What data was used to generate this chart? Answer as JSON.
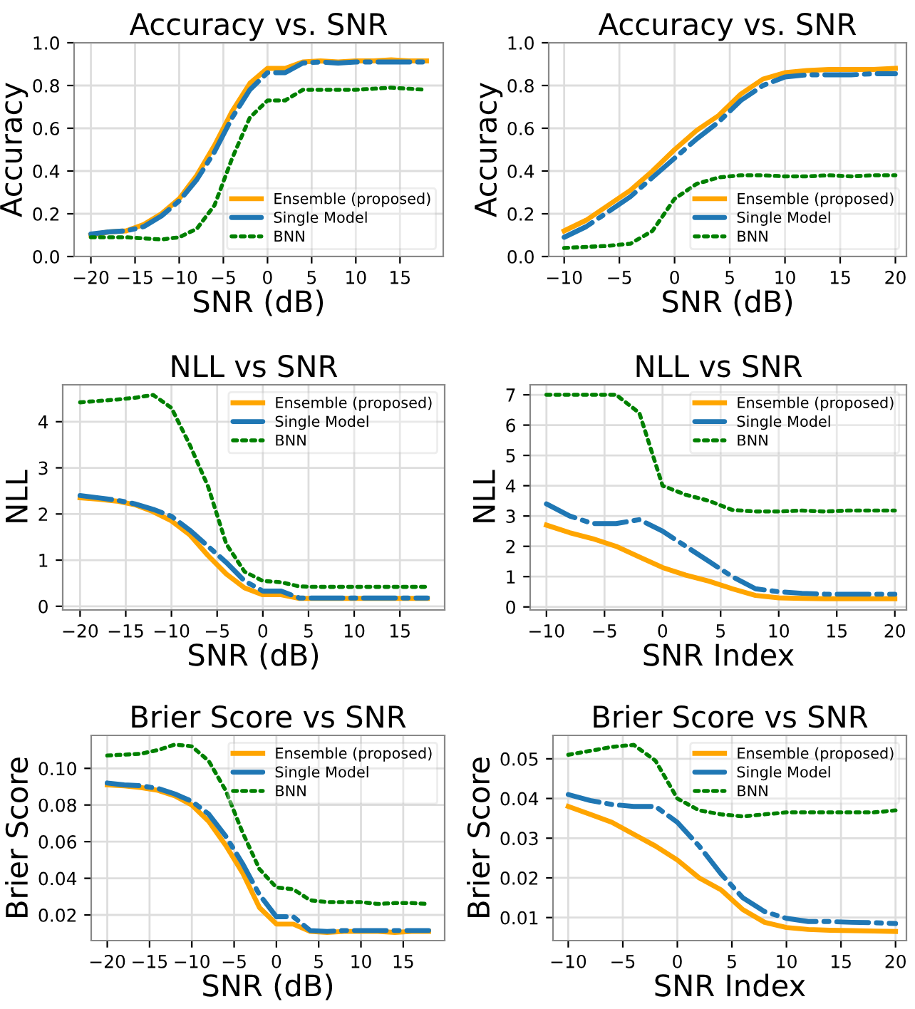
{
  "chart_data": [
    {
      "type": "line",
      "title": "Accuracy vs. SNR",
      "xlabel": "SNR (dB)",
      "ylabel": "Accuracy",
      "x": [
        -20,
        -18,
        -16,
        -14,
        -12,
        -10,
        -8,
        -6,
        -4,
        -2,
        0,
        2,
        4,
        6,
        8,
        10,
        12,
        14,
        16,
        18
      ],
      "xlim": [
        -21.9,
        19.9
      ],
      "xticks": [
        -20,
        -15,
        -10,
        -5,
        0,
        5,
        10,
        15
      ],
      "ylim": [
        0,
        1
      ],
      "yticks": [
        {
          "value": 0,
          "label": "0.0"
        },
        0.2,
        0.4,
        0.6,
        0.8,
        {
          "value": 1,
          "label": "1.0"
        }
      ],
      "grid": true,
      "legend": "lower right",
      "marker": "none",
      "series": [
        {
          "name": "Ensemble (proposed)",
          "color": "#ffa500",
          "line_style": "solid",
          "values": [
            0.1,
            0.115,
            0.12,
            0.15,
            0.2,
            0.27,
            0.38,
            0.52,
            0.68,
            0.81,
            0.88,
            0.88,
            0.91,
            0.915,
            0.91,
            0.915,
            0.915,
            0.92,
            0.915,
            0.915
          ]
        },
        {
          "name": "Single Model",
          "color": "#1f77b4",
          "line_style": "dashdot",
          "values": [
            0.105,
            0.115,
            0.12,
            0.14,
            0.19,
            0.26,
            0.36,
            0.49,
            0.65,
            0.78,
            0.86,
            0.86,
            0.905,
            0.91,
            0.905,
            0.91,
            0.91,
            0.91,
            0.91,
            0.91
          ]
        },
        {
          "name": "BNN",
          "color": "#008000",
          "line_style": "dotted",
          "values": [
            0.09,
            0.09,
            0.09,
            0.085,
            0.08,
            0.09,
            0.13,
            0.24,
            0.46,
            0.65,
            0.73,
            0.73,
            0.78,
            0.78,
            0.78,
            0.78,
            0.785,
            0.79,
            0.785,
            0.78
          ]
        }
      ]
    },
    {
      "type": "line",
      "title": "Accuracy vs. SNR",
      "xlabel": "SNR (dB)",
      "ylabel": "Accuracy",
      "x": [
        -10,
        -8,
        -6,
        -4,
        -2,
        0,
        2,
        4,
        6,
        8,
        10,
        12,
        14,
        16,
        18,
        20
      ],
      "xlim": [
        -11.4,
        21
      ],
      "xticks": [
        -10,
        -5,
        0,
        5,
        10,
        15,
        20
      ],
      "ylim": [
        0,
        1
      ],
      "yticks": [
        {
          "value": 0,
          "label": "0.0"
        },
        0.2,
        0.4,
        0.6,
        0.8,
        {
          "value": 1,
          "label": "1.0"
        }
      ],
      "grid": true,
      "legend": "lower right",
      "marker": "none",
      "series": [
        {
          "name": "Ensemble (proposed)",
          "color": "#ffa500",
          "line_style": "solid",
          "values": [
            0.12,
            0.17,
            0.24,
            0.31,
            0.4,
            0.5,
            0.59,
            0.66,
            0.76,
            0.83,
            0.86,
            0.87,
            0.875,
            0.875,
            0.875,
            0.88
          ]
        },
        {
          "name": "Single Model",
          "color": "#1f77b4",
          "line_style": "dashdot",
          "values": [
            0.09,
            0.14,
            0.21,
            0.28,
            0.37,
            0.46,
            0.55,
            0.63,
            0.73,
            0.8,
            0.84,
            0.85,
            0.85,
            0.85,
            0.855,
            0.855
          ]
        },
        {
          "name": "BNN",
          "color": "#008000",
          "line_style": "dotted",
          "values": [
            0.04,
            0.045,
            0.05,
            0.06,
            0.12,
            0.27,
            0.34,
            0.37,
            0.38,
            0.38,
            0.375,
            0.375,
            0.38,
            0.375,
            0.38,
            0.38
          ]
        }
      ]
    },
    {
      "type": "line",
      "title": "NLL vs SNR",
      "xlabel": "SNR (dB)",
      "ylabel": "NLL",
      "x": [
        -20,
        -18,
        -16,
        -14,
        -12,
        -10,
        -8,
        -6,
        -4,
        -2,
        0,
        2,
        4,
        6,
        8,
        10,
        12,
        14,
        16,
        18
      ],
      "xlim": [
        -21.9,
        19.9
      ],
      "xticks": [
        -20,
        -15,
        -10,
        -5,
        0,
        5,
        10,
        15
      ],
      "ylim": [
        -0.08,
        4.8
      ],
      "yticks": [
        0,
        1,
        2,
        3,
        4
      ],
      "grid": true,
      "legend": "upper right",
      "marker": "none",
      "series": [
        {
          "name": "Ensemble (proposed)",
          "color": "#ffa500",
          "line_style": "solid",
          "values": [
            2.35,
            2.32,
            2.28,
            2.2,
            2.05,
            1.85,
            1.55,
            1.1,
            0.7,
            0.4,
            0.25,
            0.25,
            0.17,
            0.17,
            0.17,
            0.17,
            0.17,
            0.17,
            0.17,
            0.17
          ]
        },
        {
          "name": "Single Model",
          "color": "#1f77b4",
          "line_style": "dashdot",
          "values": [
            2.4,
            2.35,
            2.3,
            2.22,
            2.1,
            1.95,
            1.65,
            1.3,
            0.95,
            0.55,
            0.33,
            0.33,
            0.18,
            0.18,
            0.18,
            0.18,
            0.18,
            0.18,
            0.18,
            0.18
          ]
        },
        {
          "name": "BNN",
          "color": "#008000",
          "line_style": "dotted",
          "values": [
            4.42,
            4.45,
            4.48,
            4.52,
            4.58,
            4.3,
            3.5,
            2.6,
            1.35,
            0.75,
            0.55,
            0.52,
            0.43,
            0.42,
            0.42,
            0.42,
            0.42,
            0.42,
            0.42,
            0.42
          ]
        }
      ]
    },
    {
      "type": "line",
      "title": "NLL vs SNR",
      "xlabel": "SNR Index",
      "ylabel": "NLL",
      "x": [
        -10,
        -8,
        -6,
        -4,
        -2,
        0,
        2,
        4,
        6,
        8,
        10,
        12,
        14,
        16,
        18,
        20
      ],
      "xlim": [
        -11.4,
        21
      ],
      "xticks": [
        -10,
        -5,
        0,
        5,
        10,
        15,
        20
      ],
      "ylim": [
        -0.1,
        7.33
      ],
      "yticks": [
        0,
        1,
        2,
        3,
        4,
        5,
        6,
        7
      ],
      "grid": true,
      "legend": "upper right",
      "marker": "none",
      "series": [
        {
          "name": "Ensemble (proposed)",
          "color": "#ffa500",
          "line_style": "solid",
          "values": [
            2.7,
            2.45,
            2.25,
            2.0,
            1.65,
            1.3,
            1.05,
            0.85,
            0.6,
            0.38,
            0.3,
            0.28,
            0.27,
            0.27,
            0.27,
            0.27
          ]
        },
        {
          "name": "Single Model",
          "color": "#1f77b4",
          "line_style": "dashdot",
          "values": [
            3.4,
            3.0,
            2.75,
            2.75,
            2.88,
            2.5,
            2.0,
            1.5,
            1.0,
            0.6,
            0.5,
            0.45,
            0.42,
            0.42,
            0.42,
            0.42
          ]
        },
        {
          "name": "BNN",
          "color": "#008000",
          "line_style": "dotted",
          "values": [
            7.0,
            7.0,
            7.0,
            7.0,
            6.4,
            4.0,
            3.7,
            3.5,
            3.2,
            3.15,
            3.15,
            3.18,
            3.15,
            3.18,
            3.18,
            3.18
          ]
        }
      ]
    },
    {
      "type": "line",
      "title": "Brier Score vs SNR",
      "xlabel": "SNR (dB)",
      "ylabel": "Brier Score",
      "x": [
        -20,
        -18,
        -16,
        -14,
        -12,
        -10,
        -8,
        -6,
        -4,
        -2,
        0,
        2,
        4,
        6,
        8,
        10,
        12,
        14,
        16,
        18
      ],
      "xlim": [
        -21.9,
        19.9
      ],
      "xticks": [
        -20,
        -15,
        -10,
        -5,
        0,
        5,
        10,
        15
      ],
      "ylim": [
        0.006,
        0.118
      ],
      "yticks": [
        {
          "value": 0.02,
          "label": "0.02"
        },
        {
          "value": 0.04,
          "label": "0.04"
        },
        {
          "value": 0.06,
          "label": "0.06"
        },
        {
          "value": 0.08,
          "label": "0.08"
        },
        {
          "value": 0.1,
          "label": "0.10"
        }
      ],
      "grid": true,
      "legend": "upper right",
      "marker": "none",
      "series": [
        {
          "name": "Ensemble (proposed)",
          "color": "#ffa500",
          "line_style": "solid",
          "values": [
            0.091,
            0.0905,
            0.0895,
            0.088,
            0.085,
            0.08,
            0.071,
            0.058,
            0.043,
            0.024,
            0.015,
            0.015,
            0.011,
            0.0105,
            0.011,
            0.011,
            0.011,
            0.0105,
            0.011,
            0.011
          ]
        },
        {
          "name": "Single Model",
          "color": "#1f77b4",
          "line_style": "dashdot",
          "values": [
            0.092,
            0.091,
            0.0905,
            0.089,
            0.086,
            0.082,
            0.075,
            0.063,
            0.048,
            0.031,
            0.019,
            0.019,
            0.0115,
            0.011,
            0.0115,
            0.0115,
            0.0115,
            0.0115,
            0.0115,
            0.0115
          ]
        },
        {
          "name": "BNN",
          "color": "#008000",
          "line_style": "dotted",
          "values": [
            0.107,
            0.1075,
            0.108,
            0.11,
            0.113,
            0.112,
            0.104,
            0.088,
            0.065,
            0.045,
            0.035,
            0.034,
            0.028,
            0.027,
            0.027,
            0.027,
            0.026,
            0.0265,
            0.0265,
            0.026
          ]
        }
      ]
    },
    {
      "type": "line",
      "title": "Brier Score vs SNR",
      "xlabel": "SNR Index",
      "ylabel": "Brier Score",
      "x": [
        -10,
        -8,
        -6,
        -4,
        -2,
        0,
        2,
        4,
        6,
        8,
        10,
        12,
        14,
        16,
        18,
        20
      ],
      "xlim": [
        -11.4,
        21
      ],
      "xticks": [
        -10,
        -5,
        0,
        5,
        10,
        15,
        20
      ],
      "ylim": [
        0.0042,
        0.0559
      ],
      "yticks": [
        0.01,
        0.02,
        0.03,
        0.04,
        0.05
      ],
      "grid": true,
      "legend": "upper right",
      "marker": "none",
      "series": [
        {
          "name": "Ensemble (proposed)",
          "color": "#ffa500",
          "line_style": "solid",
          "values": [
            0.038,
            0.036,
            0.034,
            0.031,
            0.028,
            0.0245,
            0.02,
            0.017,
            0.012,
            0.0088,
            0.0075,
            0.007,
            0.0068,
            0.0067,
            0.0066,
            0.0065
          ]
        },
        {
          "name": "Single Model",
          "color": "#1f77b4",
          "line_style": "dashdot",
          "values": [
            0.041,
            0.0395,
            0.0385,
            0.038,
            0.038,
            0.034,
            0.028,
            0.021,
            0.015,
            0.0115,
            0.0098,
            0.009,
            0.009,
            0.0088,
            0.0087,
            0.0085
          ]
        },
        {
          "name": "BNN",
          "color": "#008000",
          "line_style": "dotted",
          "values": [
            0.051,
            0.052,
            0.053,
            0.0535,
            0.0495,
            0.04,
            0.037,
            0.036,
            0.0355,
            0.036,
            0.0365,
            0.0365,
            0.0365,
            0.0365,
            0.0365,
            0.037
          ]
        }
      ]
    }
  ]
}
